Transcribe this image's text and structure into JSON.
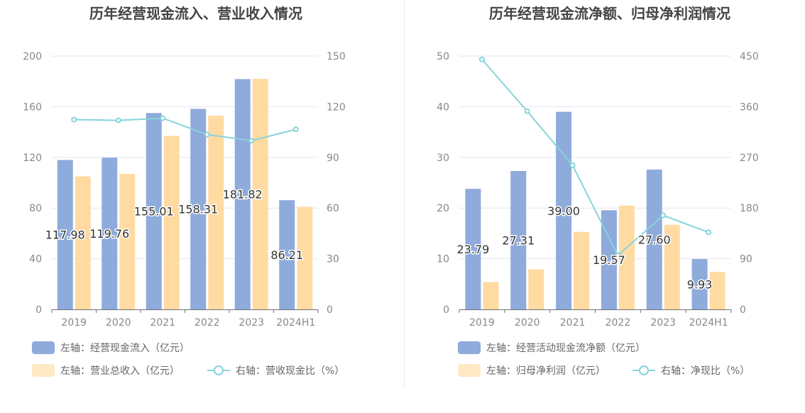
{
  "colors": {
    "bar_primary": "#8eabdb",
    "bar_secondary": "#ffdba2",
    "line": "#87d3da",
    "axis_text": "#888888",
    "grid": "#e3e6ef",
    "title": "#444444",
    "label": "#333333"
  },
  "chart_data": [
    {
      "type": "bar",
      "title": "历年经营现金流入、营业收入情况",
      "categories": [
        "2019",
        "2020",
        "2021",
        "2022",
        "2023",
        "2024H1"
      ],
      "left_axis": {
        "ticks": [
          "0",
          "40",
          "80",
          "120",
          "160",
          "200"
        ],
        "range": [
          0,
          200
        ]
      },
      "right_axis": {
        "ticks": [
          "0",
          "30",
          "60",
          "90",
          "120",
          "150"
        ],
        "range": [
          0,
          150
        ]
      },
      "series": [
        {
          "name": "左轴：经营现金流入（亿元）",
          "kind": "bar",
          "axis": "left",
          "values": [
            117.98,
            119.76,
            155.01,
            158.31,
            181.82,
            86.21
          ],
          "labels": [
            "117.98",
            "119.76",
            "155.01",
            "158.31",
            "181.82",
            "86.21"
          ]
        },
        {
          "name": "左轴：营业总收入（亿元）",
          "kind": "bar",
          "axis": "left",
          "values": [
            105,
            107,
            137,
            153,
            182,
            81
          ]
        },
        {
          "name": "右轴：营收现金比（%）",
          "kind": "line",
          "axis": "right",
          "values": [
            112.4,
            111.9,
            113.2,
            103.5,
            99.9,
            106.6
          ]
        }
      ],
      "grid": true,
      "legend_position": "bottom"
    },
    {
      "type": "bar",
      "title": "历年经营现金流净额、归母净利润情况",
      "categories": [
        "2019",
        "2020",
        "2021",
        "2022",
        "2023",
        "2024H1"
      ],
      "left_axis": {
        "ticks": [
          "0",
          "10",
          "20",
          "30",
          "40",
          "50"
        ],
        "range": [
          0,
          50
        ]
      },
      "right_axis": {
        "ticks": [
          "0",
          "90",
          "180",
          "270",
          "360",
          "450"
        ],
        "range": [
          0,
          450
        ]
      },
      "series": [
        {
          "name": "左轴：经营活动现金流净额（亿元）",
          "kind": "bar",
          "axis": "left",
          "values": [
            23.79,
            27.31,
            39.0,
            19.57,
            27.6,
            9.93
          ],
          "labels": [
            "23.79",
            "27.31",
            "39.00",
            "19.57",
            "27.60",
            "9.93"
          ]
        },
        {
          "name": "左轴：归母净利润（亿元）",
          "kind": "bar",
          "axis": "left",
          "values": [
            5.4,
            7.9,
            15.3,
            20.5,
            16.7,
            7.4
          ]
        },
        {
          "name": "右轴：净现比（%）",
          "kind": "line",
          "axis": "right",
          "values": [
            444,
            352,
            256,
            96,
            167,
            137
          ]
        }
      ],
      "grid": true,
      "legend_position": "bottom"
    }
  ]
}
